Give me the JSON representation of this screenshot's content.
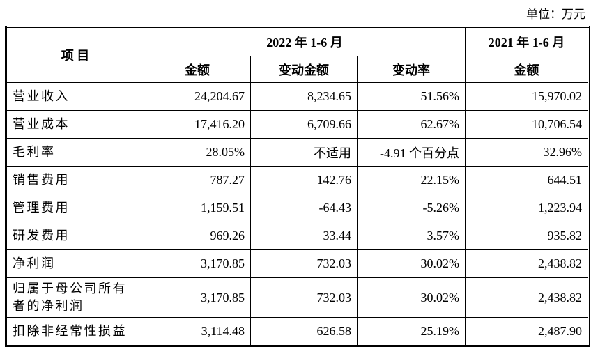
{
  "unit": "单位：万元",
  "table": {
    "header": {
      "item": "项 目",
      "period_2022": "2022 年 1-6 月",
      "period_2021": "2021 年 1-6 月",
      "columns": [
        "金额",
        "变动金额",
        "变动率",
        "金额"
      ]
    },
    "rows": [
      [
        "营业收入",
        "24,204.67",
        "8,234.65",
        "51.56%",
        "15,970.02"
      ],
      [
        "营业成本",
        "17,416.20",
        "6,709.66",
        "62.67%",
        "10,706.54"
      ],
      [
        "毛利率",
        "28.05%",
        "不适用",
        "-4.91 个百分点",
        "32.96%"
      ],
      [
        "销售费用",
        "787.27",
        "142.76",
        "22.15%",
        "644.51"
      ],
      [
        "管理费用",
        "1,159.51",
        "-64.43",
        "-5.26%",
        "1,223.94"
      ],
      [
        "研发费用",
        "969.26",
        "33.44",
        "3.57%",
        "935.82"
      ],
      [
        "净利润",
        "3,170.85",
        "732.03",
        "30.02%",
        "2,438.82"
      ],
      [
        "归属于母公司所有者的净利润",
        "3,170.85",
        "732.03",
        "30.02%",
        "2,438.82"
      ],
      [
        "扣除非经常性损益",
        "3,114.48",
        "626.58",
        "25.19%",
        "2,487.90"
      ]
    ]
  }
}
